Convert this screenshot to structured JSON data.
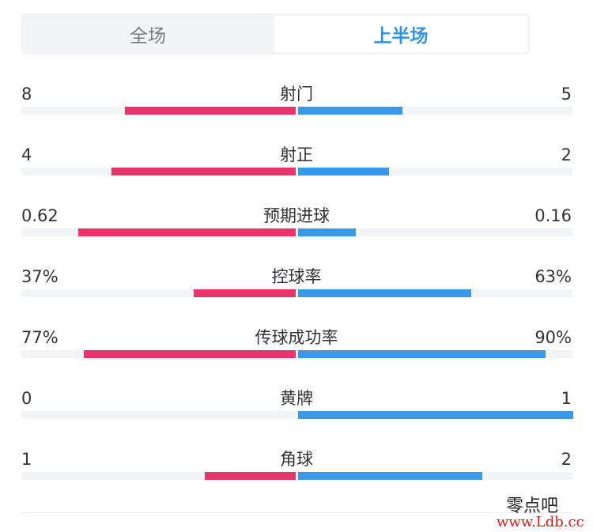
{
  "tabs": [
    {
      "label": "全场",
      "active": false
    },
    {
      "label": "上半场",
      "active": true
    }
  ],
  "stats": [
    {
      "label": "射门",
      "left": "8",
      "right": "5",
      "left_fraction": 0.62,
      "right_fraction": 0.38
    },
    {
      "label": "射正",
      "left": "4",
      "right": "2",
      "left_fraction": 0.67,
      "right_fraction": 0.33
    },
    {
      "label": "预期进球",
      "left": "0.62",
      "right": "0.16",
      "left_fraction": 0.79,
      "right_fraction": 0.21
    },
    {
      "label": "控球率",
      "left": "37%",
      "right": "63%",
      "left_fraction": 0.37,
      "right_fraction": 0.63
    },
    {
      "label": "传球成功率",
      "left": "77%",
      "right": "90%",
      "left_fraction": 0.77,
      "right_fraction": 0.9
    },
    {
      "label": "黄牌",
      "left": "0",
      "right": "1",
      "left_fraction": 0.0,
      "right_fraction": 1.0
    },
    {
      "label": "角球",
      "left": "1",
      "right": "2",
      "left_fraction": 0.33,
      "right_fraction": 0.67
    }
  ],
  "colors": {
    "home": "#e8336b",
    "away": "#3a98e7",
    "active_tab": "#2e93e8"
  },
  "watermark": {
    "line1": "零点吧",
    "line2": "www.Ldb.cc"
  }
}
